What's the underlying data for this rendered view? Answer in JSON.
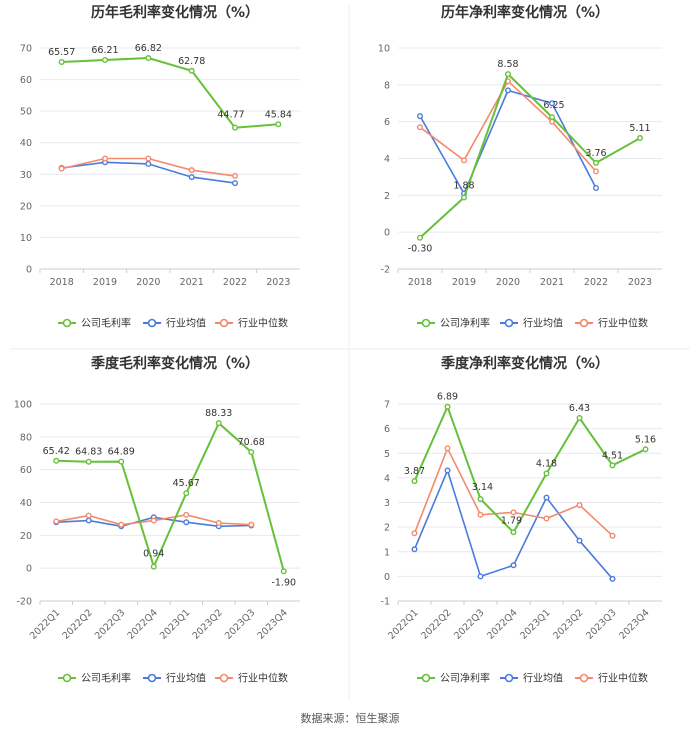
{
  "colors": {
    "company": "#66c13a",
    "avg": "#4a7bdc",
    "median": "#f4896b",
    "grid": "#e6e9f0",
    "divider": "#dddddd"
  },
  "legend_labels": {
    "gross_company": "公司毛利率",
    "net_company": "公司净利率",
    "avg": "行业均值",
    "median": "行业中位数"
  },
  "source_text": "数据来源：恒生聚源",
  "chart_data": [
    {
      "type": "line",
      "title": "历年毛利率变化情况（%）",
      "categories": [
        "2018",
        "2019",
        "2020",
        "2021",
        "2022",
        "2023"
      ],
      "ylim": [
        0,
        70
      ],
      "yticks": [
        0,
        10,
        20,
        30,
        40,
        50,
        60,
        70
      ],
      "series": [
        {
          "name": "公司毛利率",
          "role": "company",
          "values": [
            65.57,
            66.21,
            66.82,
            62.78,
            44.77,
            45.84
          ],
          "labels": [
            "65.57",
            "66.21",
            "66.82",
            "62.78",
            "44.77",
            "45.84"
          ]
        },
        {
          "name": "行业均值",
          "role": "avg",
          "values": [
            32.0,
            33.8,
            33.3,
            29.1,
            27.2,
            null
          ]
        },
        {
          "name": "行业中位数",
          "role": "median",
          "values": [
            31.8,
            35.0,
            35.0,
            31.3,
            29.5,
            null
          ]
        }
      ]
    },
    {
      "type": "line",
      "title": "历年净利率变化情况（%）",
      "categories": [
        "2018",
        "2019",
        "2020",
        "2021",
        "2022",
        "2023"
      ],
      "ylim": [
        -2,
        10
      ],
      "yticks": [
        -2,
        0,
        2,
        4,
        6,
        8,
        10
      ],
      "series": [
        {
          "name": "公司净利率",
          "role": "company",
          "values": [
            -0.3,
            1.88,
            8.58,
            6.25,
            3.76,
            5.11
          ],
          "labels": [
            "-0.30",
            "1.88",
            "8.58",
            "6.25",
            "3.76",
            "5.11"
          ]
        },
        {
          "name": "行业均值",
          "role": "avg",
          "values": [
            6.3,
            2.1,
            7.7,
            7.0,
            2.4,
            null
          ]
        },
        {
          "name": "行业中位数",
          "role": "median",
          "values": [
            5.7,
            3.9,
            8.2,
            6.0,
            3.3,
            null
          ]
        }
      ]
    },
    {
      "type": "line",
      "title": "季度毛利率变化情况（%）",
      "categories": [
        "2022Q1",
        "2022Q2",
        "2022Q3",
        "2022Q4",
        "2023Q1",
        "2023Q2",
        "2023Q3",
        "2023Q4"
      ],
      "ylim": [
        -20,
        100
      ],
      "yticks": [
        -20,
        0,
        20,
        40,
        60,
        80,
        100
      ],
      "series": [
        {
          "name": "公司毛利率",
          "role": "company",
          "values": [
            65.42,
            64.83,
            64.89,
            0.94,
            45.67,
            88.33,
            70.68,
            -1.9
          ],
          "labels": [
            "65.42",
            "64.83",
            "64.89",
            "0.94",
            "45.67",
            "88.33",
            "70.68",
            "-1.90"
          ]
        },
        {
          "name": "行业均值",
          "role": "avg",
          "values": [
            28.0,
            29.0,
            25.5,
            31.0,
            28.0,
            25.5,
            26.0,
            null
          ]
        },
        {
          "name": "行业中位数",
          "role": "median",
          "values": [
            28.5,
            32.0,
            26.5,
            29.0,
            32.5,
            27.5,
            26.5,
            null
          ]
        }
      ]
    },
    {
      "type": "line",
      "title": "季度净利率变化情况（%）",
      "categories": [
        "2022Q1",
        "2022Q2",
        "2022Q3",
        "2022Q4",
        "2023Q1",
        "2023Q2",
        "2023Q3",
        "2023Q4"
      ],
      "ylim": [
        -1,
        7
      ],
      "yticks": [
        -1,
        0,
        1,
        2,
        3,
        4,
        5,
        6,
        7
      ],
      "series": [
        {
          "name": "公司净利率",
          "role": "company",
          "values": [
            3.87,
            6.89,
            3.14,
            1.79,
            4.18,
            6.43,
            4.51,
            5.16
          ],
          "labels": [
            "3.87",
            "6.89",
            "3.14",
            "1.79",
            "4.18",
            "6.43",
            "4.51",
            "5.16"
          ]
        },
        {
          "name": "行业均值",
          "role": "avg",
          "values": [
            1.1,
            4.3,
            0.0,
            0.45,
            3.2,
            1.45,
            -0.1,
            null
          ]
        },
        {
          "name": "行业中位数",
          "role": "median",
          "values": [
            1.75,
            5.2,
            2.5,
            2.6,
            2.35,
            2.9,
            1.65,
            null
          ]
        }
      ]
    }
  ]
}
